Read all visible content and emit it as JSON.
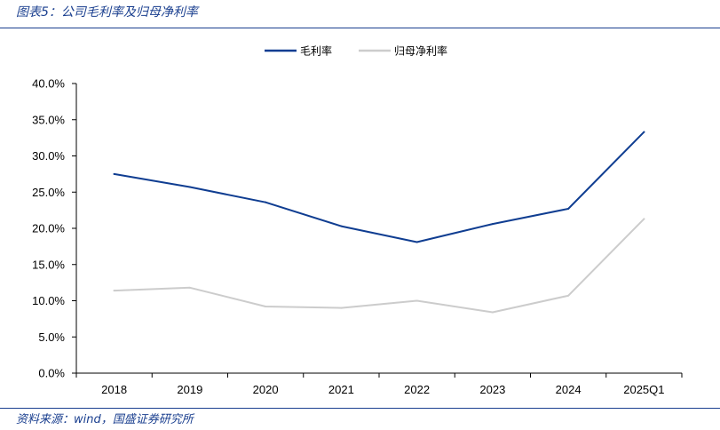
{
  "figure": {
    "title": "图表5：公司毛利率及归母净利率",
    "source": "资料来源：wind，国盛证券研究所"
  },
  "colors": {
    "accent": "#1a3f8f",
    "series_gross": "#0f3d91",
    "series_net": "#cccccc",
    "axis": "#000000"
  },
  "chart_data": {
    "type": "line",
    "categories": [
      "2018",
      "2019",
      "2020",
      "2021",
      "2022",
      "2023",
      "2024",
      "2025Q1"
    ],
    "series": [
      {
        "name": "毛利率",
        "values": [
          27.5,
          25.7,
          23.6,
          20.3,
          18.1,
          20.6,
          22.7,
          33.3
        ]
      },
      {
        "name": "归母净利率",
        "values": [
          11.4,
          11.8,
          9.2,
          9.0,
          10.0,
          8.4,
          10.7,
          21.3
        ]
      }
    ],
    "y_ticks": [
      "0.0%",
      "5.0%",
      "10.0%",
      "15.0%",
      "20.0%",
      "25.0%",
      "30.0%",
      "35.0%",
      "40.0%"
    ],
    "ylim": [
      0,
      40
    ],
    "legend_position": "top-center",
    "grid": false
  }
}
